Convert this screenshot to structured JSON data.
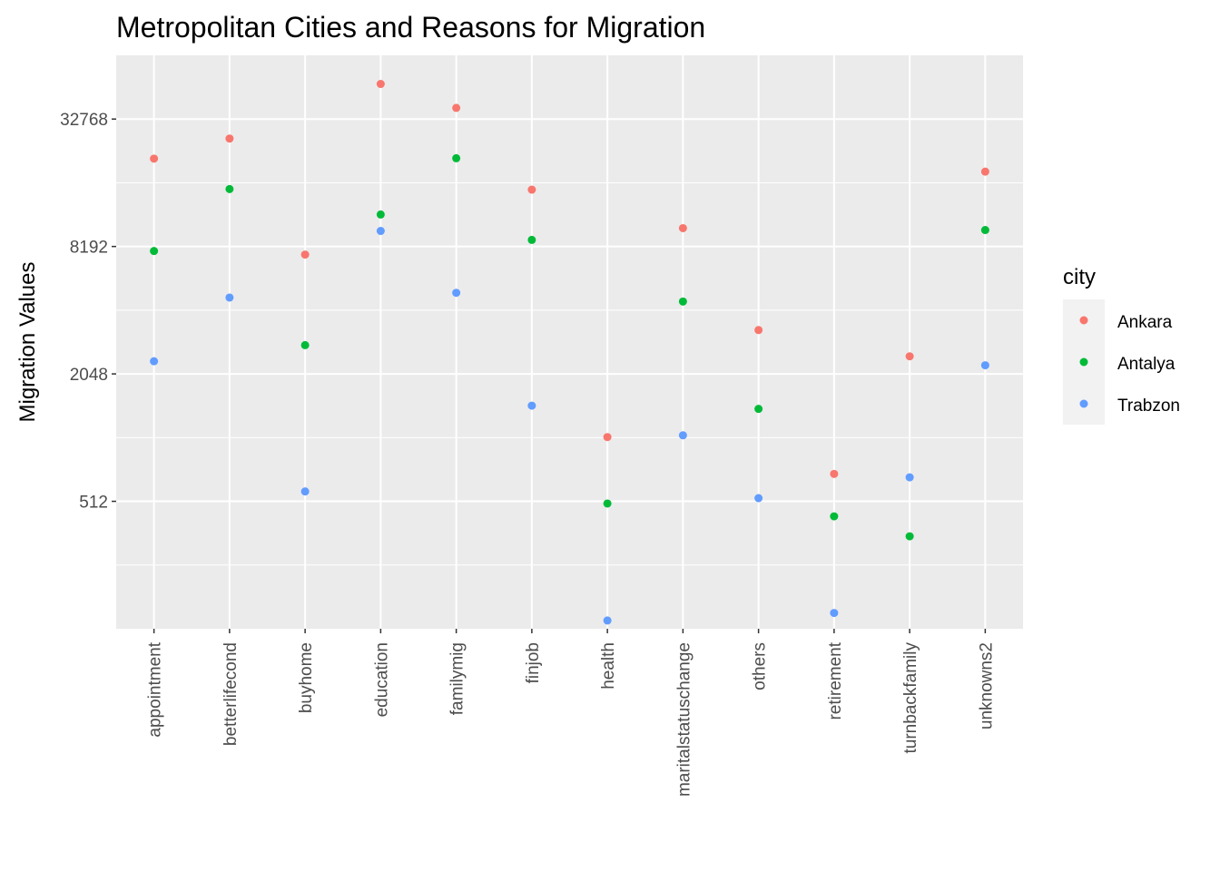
{
  "chart_data": {
    "type": "scatter",
    "title": "Metropolitan Cities and Reasons for Migration",
    "xlabel": "",
    "ylabel": "Migration Values",
    "y_scale": "log2",
    "ylim": [
      128,
      65536
    ],
    "y_ticks": [
      {
        "value": 512,
        "label": "512"
      },
      {
        "value": 2048,
        "label": "2048"
      },
      {
        "value": 8192,
        "label": "8192"
      },
      {
        "value": 32768,
        "label": "32768"
      }
    ],
    "grid": true,
    "legend": {
      "title": "city",
      "placement": "right"
    },
    "categories": [
      "appointment",
      "betterlifecond",
      "buyhome",
      "education",
      "familymig",
      "finjob",
      "health",
      "maritalstatuschange",
      "others",
      "retirement",
      "turnbackfamily",
      "unknowns2"
    ],
    "series": [
      {
        "name": "Ankara",
        "color": "#F8766D",
        "values": [
          21300,
          26500,
          7500,
          48000,
          37000,
          15200,
          1030,
          10000,
          3300,
          690,
          2480,
          18500
        ]
      },
      {
        "name": "Antalya",
        "color": "#00BA38",
        "values": [
          7800,
          15300,
          2800,
          11600,
          21400,
          8800,
          500,
          4500,
          1400,
          435,
          350,
          9800
        ]
      },
      {
        "name": "Trabzon",
        "color": "#619CFF",
        "values": [
          2350,
          4700,
          570,
          9700,
          4950,
          1450,
          140,
          1050,
          530,
          152,
          665,
          2250
        ]
      }
    ]
  }
}
